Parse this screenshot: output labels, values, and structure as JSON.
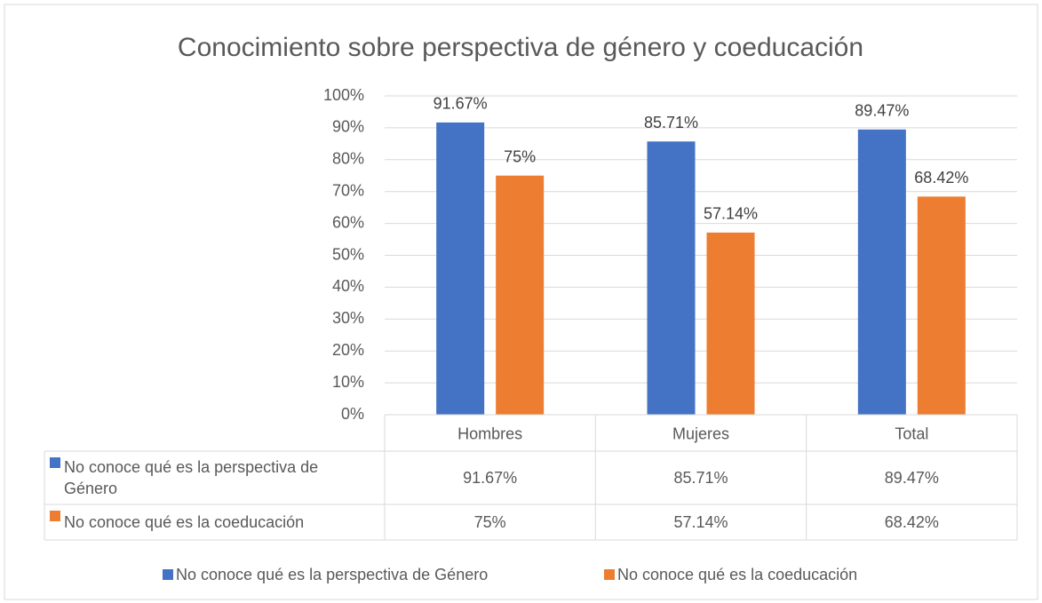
{
  "chart_data": {
    "type": "bar",
    "title": "Conocimiento sobre perspectiva de género y coeducación",
    "categories": [
      "Hombres",
      "Mujeres",
      "Total"
    ],
    "series": [
      {
        "name": "No conoce qué es la perspectiva de Género",
        "color": "#4472c4",
        "values": [
          91.67,
          85.71,
          89.47
        ],
        "value_labels": [
          "91.67%",
          "85.71%",
          "89.47%"
        ]
      },
      {
        "name": "No conoce qué es la coeducación",
        "color": "#ed7d31",
        "values": [
          75,
          57.14,
          68.42
        ],
        "value_labels": [
          "75%",
          "57.14%",
          "68.42%"
        ]
      }
    ],
    "ylim": [
      0,
      100
    ],
    "yticks": [
      {
        "value": 0,
        "label": "0%"
      },
      {
        "value": 10,
        "label": "10%"
      },
      {
        "value": 20,
        "label": "20%"
      },
      {
        "value": 30,
        "label": "30%"
      },
      {
        "value": 40,
        "label": "40%"
      },
      {
        "value": 50,
        "label": "50%"
      },
      {
        "value": 60,
        "label": "60%"
      },
      {
        "value": 70,
        "label": "70%"
      },
      {
        "value": 80,
        "label": "80%"
      },
      {
        "value": 90,
        "label": "90%"
      },
      {
        "value": 100,
        "label": "100%"
      }
    ],
    "grid": true,
    "data_table": true,
    "legend": "bottom"
  }
}
